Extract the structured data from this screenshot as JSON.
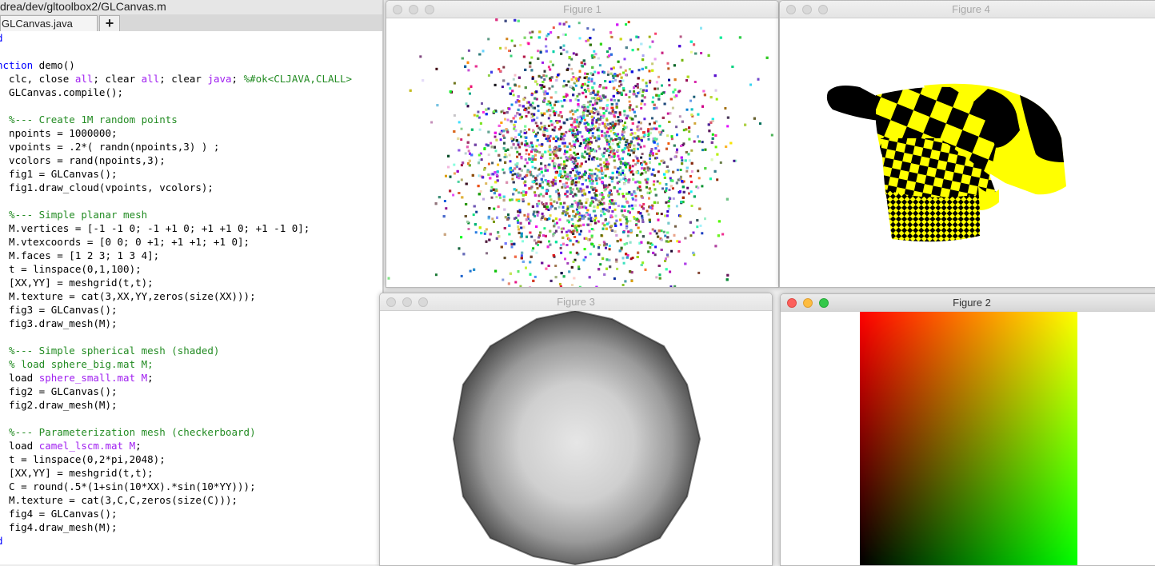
{
  "editor": {
    "window_title": "drea/dev/gltoolbox2/GLCanvas.m",
    "tab_label": "GLCanvas.java",
    "add_tab_label": "+",
    "lines": [
      [
        {
          "c": "kw",
          "t": "d"
        }
      ],
      [],
      [
        {
          "c": "kw",
          "t": "nction"
        },
        {
          "t": " demo()"
        }
      ],
      [
        {
          "t": "  clc, close "
        },
        {
          "c": "st",
          "t": "all"
        },
        {
          "t": "; clear "
        },
        {
          "c": "st",
          "t": "all"
        },
        {
          "t": "; clear "
        },
        {
          "c": "st",
          "t": "java"
        },
        {
          "t": "; "
        },
        {
          "c": "cm",
          "t": "%#ok<CLJAVA,CLALL>"
        }
      ],
      [
        {
          "t": "  GLCanvas.compile();"
        }
      ],
      [],
      [
        {
          "c": "cm",
          "t": "  %--- Create 1M random points"
        }
      ],
      [
        {
          "t": "  npoints = 1000000;"
        }
      ],
      [
        {
          "t": "  vpoints = .2*( randn(npoints,3) ) ;"
        }
      ],
      [
        {
          "t": "  vcolors = rand(npoints,3);"
        }
      ],
      [
        {
          "t": "  fig1 = GLCanvas();"
        }
      ],
      [
        {
          "t": "  fig1.draw_cloud(vpoints, vcolors);"
        }
      ],
      [],
      [
        {
          "c": "cm",
          "t": "  %--- Simple planar mesh"
        }
      ],
      [
        {
          "t": "  M.vertices = [-1 -1 0; -1 +1 0; +1 +1 0; +1 -1 0];"
        }
      ],
      [
        {
          "t": "  M.vtexcoords = [0 0; 0 +1; +1 +1; +1 0];"
        }
      ],
      [
        {
          "t": "  M.faces = [1 2 3; 1 3 4];"
        }
      ],
      [
        {
          "t": "  t = linspace(0,1,100);"
        }
      ],
      [
        {
          "t": "  [XX,YY] = meshgrid(t,t);"
        }
      ],
      [
        {
          "t": "  M.texture = cat(3,XX,YY,zeros(size(XX)));"
        }
      ],
      [
        {
          "t": "  fig3 = GLCanvas();"
        }
      ],
      [
        {
          "t": "  fig3.draw_mesh(M);"
        }
      ],
      [],
      [
        {
          "c": "cm",
          "t": "  %--- Simple spherical mesh (shaded)"
        }
      ],
      [
        {
          "c": "cm",
          "t": "  % load sphere_big.mat M;"
        }
      ],
      [
        {
          "t": "  load "
        },
        {
          "c": "st",
          "t": "sphere_small.mat M"
        },
        {
          "t": ";"
        }
      ],
      [
        {
          "t": "  fig2 = GLCanvas();"
        }
      ],
      [
        {
          "t": "  fig2.draw_mesh(M);"
        }
      ],
      [],
      [
        {
          "c": "cm",
          "t": "  %--- Parameterization mesh (checkerboard)"
        }
      ],
      [
        {
          "t": "  load "
        },
        {
          "c": "st",
          "t": "camel_lscm.mat M"
        },
        {
          "t": ";"
        }
      ],
      [
        {
          "t": "  t = linspace(0,2*pi,2048);"
        }
      ],
      [
        {
          "t": "  [XX,YY] = meshgrid(t,t);"
        }
      ],
      [
        {
          "t": "  C = round(.5*(1+sin(10*XX).*sin(10*YY)));"
        }
      ],
      [
        {
          "t": "  M.texture = cat(3,C,C,zeros(size(C)));"
        }
      ],
      [
        {
          "t": "  fig4 = GLCanvas();"
        }
      ],
      [
        {
          "t": "  fig4.draw_mesh(M);"
        }
      ],
      [
        {
          "c": "kw",
          "t": "d"
        }
      ]
    ]
  },
  "figures": {
    "fig1": {
      "title": "Figure 1"
    },
    "fig4": {
      "title": "Figure 4",
      "checker_colors": [
        "#000000",
        "#ffff00"
      ]
    },
    "fig3": {
      "title": "Figure 3"
    },
    "fig2": {
      "title": "Figure 2",
      "gradient_corners": {
        "top_left": "#ff0000",
        "top_right": "#ffff00",
        "bottom_left": "#000000",
        "bottom_right": "#00ff00"
      }
    }
  },
  "colors": {
    "keyword": "#0000ff",
    "comment": "#228b22",
    "string": "#a020f0",
    "close_light": "#fc605c",
    "minimize_light": "#fdbc40",
    "zoom_light": "#34c84a"
  }
}
